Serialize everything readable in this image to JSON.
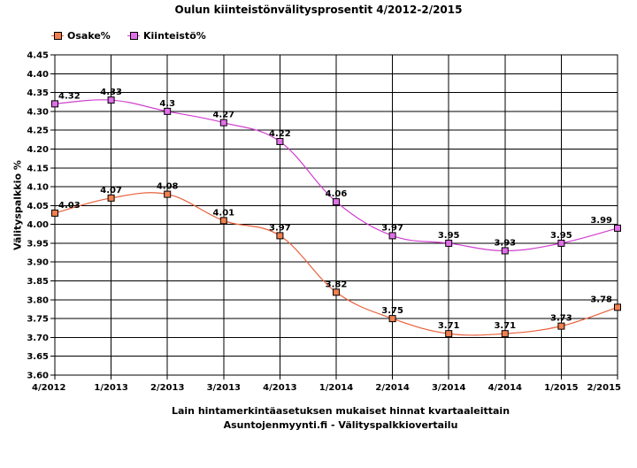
{
  "chart_data": {
    "type": "line",
    "title": "Oulun kiinteistönvälitysprosentit 4/2012-2/2015",
    "xlabel": "Lain hintamerkintäasetuksen mukaiset hinnat kvartaaleittain",
    "ylabel": "Välityspalkkio %",
    "caption": "Asuntojenmyynti.fi - Välityspalkkiovertailu",
    "x_ticks": [
      "4/2012",
      "1/2013",
      "2/2013",
      "3/2013",
      "4/2013",
      "1/2014",
      "2/2014",
      "3/2014",
      "4/2014",
      "1/2015",
      "2/2015"
    ],
    "x": [
      "4/2012",
      "1/2013",
      "2/2013",
      "3/2013",
      "4/2013",
      "1/2014",
      "2/2014",
      "3/2014",
      "4/2014",
      "1/2015",
      "2/2015"
    ],
    "ylim": [
      3.6,
      4.45
    ],
    "y_ticks": [
      "3.60",
      "3.65",
      "3.70",
      "3.75",
      "3.80",
      "3.85",
      "3.90",
      "3.95",
      "4.00",
      "4.05",
      "4.10",
      "4.15",
      "4.20",
      "4.25",
      "4.30",
      "4.35",
      "4.40",
      "4.45"
    ],
    "grid": true,
    "legend_position": "top-left",
    "series": [
      {
        "name": "Osake%",
        "color": "#e8603a",
        "marker_color": "#f08050",
        "values": [
          4.03,
          4.07,
          4.08,
          4.01,
          3.97,
          3.82,
          3.75,
          3.71,
          3.71,
          3.73,
          3.78
        ],
        "labels": [
          "4.03",
          "4.07",
          "4.08",
          "4.01",
          "3.97",
          "3.82",
          "3.75",
          "3.71",
          "3.71",
          "3.73",
          "3.78"
        ]
      },
      {
        "name": "Kiinteistö%",
        "color": "#d040d0",
        "marker_color": "#e070e8",
        "values": [
          4.32,
          4.33,
          4.3,
          4.27,
          4.22,
          4.06,
          3.97,
          3.95,
          3.93,
          3.95,
          3.99
        ],
        "labels": [
          "4.32",
          "4.33",
          "4.3",
          "4.27",
          "4.22",
          "4.06",
          "3.97",
          "3.95",
          "3.93",
          "3.95",
          "3.99"
        ]
      }
    ]
  }
}
